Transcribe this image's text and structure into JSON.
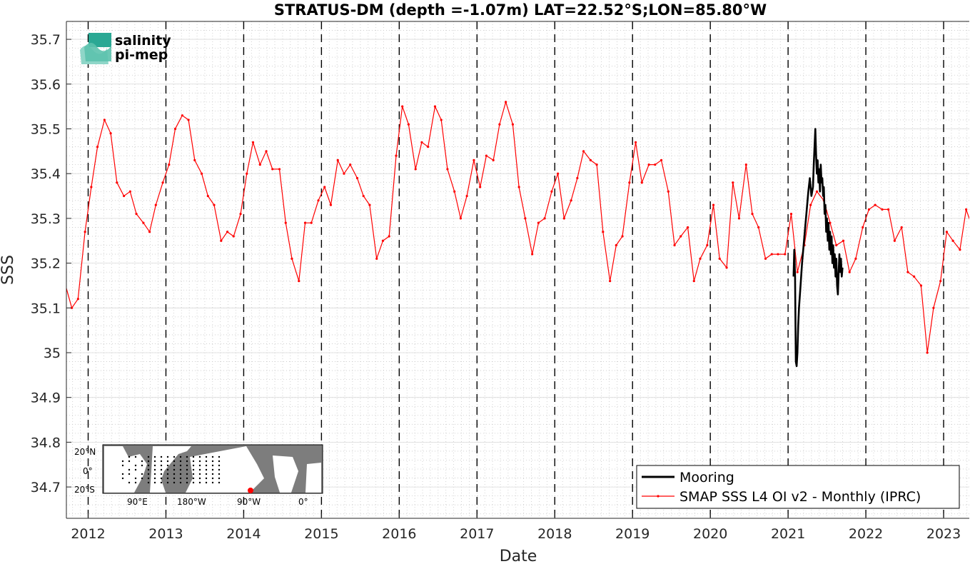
{
  "chart_data": {
    "type": "line",
    "title": "STRATUS-DM (depth =-1.07m) LAT=22.52°S;LON=85.80°W",
    "xlabel": "Date",
    "ylabel": "SSS",
    "xlim": [
      2011.72,
      2023.33
    ],
    "ylim": [
      34.63,
      35.74
    ],
    "x_ticks": [
      2012,
      2013,
      2014,
      2015,
      2016,
      2017,
      2018,
      2019,
      2020,
      2021,
      2022,
      2023
    ],
    "x_tick_labels": [
      "2012",
      "2013",
      "2014",
      "2015",
      "2016",
      "2017",
      "2018",
      "2019",
      "2020",
      "2021",
      "2022",
      "2023"
    ],
    "y_ticks": [
      34.7,
      34.8,
      34.9,
      35.0,
      35.1,
      35.2,
      35.3,
      35.4,
      35.5,
      35.6,
      35.7
    ],
    "y_tick_labels": [
      "34.7",
      "34.8",
      "34.9",
      "35",
      "35.1",
      "35.2",
      "35.3",
      "35.4",
      "35.5",
      "35.6",
      "35.7"
    ],
    "grid": "dotted minor grid on; dashed vertical lines at each year",
    "legend_position": "bottom-right",
    "series": [
      {
        "name": "Mooring",
        "color": "#000000",
        "x": [
          2021.07,
          2021.08,
          2021.09,
          2021.1,
          2021.11,
          2021.12,
          2021.13,
          2021.14,
          2021.16,
          2021.18,
          2021.2,
          2021.22,
          2021.24,
          2021.26,
          2021.28,
          2021.3,
          2021.32,
          2021.33,
          2021.34,
          2021.35,
          2021.36,
          2021.37,
          2021.38,
          2021.39,
          2021.4,
          2021.41,
          2021.42,
          2021.43,
          2021.44,
          2021.45,
          2021.46,
          2021.47,
          2021.48,
          2021.49,
          2021.5,
          2021.51,
          2021.52,
          2021.53,
          2021.54,
          2021.55,
          2021.56,
          2021.57,
          2021.58,
          2021.59,
          2021.6,
          2021.61,
          2021.62,
          2021.63,
          2021.64,
          2021.65,
          2021.66,
          2021.67,
          2021.68,
          2021.69,
          2021.7
        ],
        "y": [
          35.17,
          35.23,
          35.17,
          34.98,
          34.97,
          35.0,
          35.06,
          35.1,
          35.15,
          35.2,
          35.24,
          35.28,
          35.32,
          35.36,
          35.39,
          35.35,
          35.37,
          35.42,
          35.46,
          35.5,
          35.44,
          35.4,
          35.43,
          35.38,
          35.41,
          35.36,
          35.42,
          35.38,
          35.39,
          35.35,
          35.37,
          35.31,
          35.33,
          35.27,
          35.3,
          35.25,
          35.29,
          35.23,
          35.27,
          35.22,
          35.26,
          35.2,
          35.24,
          35.19,
          35.22,
          35.17,
          35.21,
          35.15,
          35.13,
          35.18,
          35.22,
          35.18,
          35.21,
          35.17,
          35.19
        ]
      },
      {
        "name": "SMAP SSS L4 OI v2 - Monthly (IPRC)",
        "color": "#ff0000",
        "x": [
          2011.71,
          2011.79,
          2011.87,
          2011.96,
          2012.04,
          2012.12,
          2012.21,
          2012.29,
          2012.37,
          2012.46,
          2012.54,
          2012.62,
          2012.71,
          2012.79,
          2012.87,
          2012.96,
          2013.04,
          2013.12,
          2013.21,
          2013.29,
          2013.37,
          2013.46,
          2013.54,
          2013.62,
          2013.71,
          2013.79,
          2013.87,
          2013.96,
          2014.04,
          2014.12,
          2014.21,
          2014.29,
          2014.37,
          2014.46,
          2014.54,
          2014.62,
          2014.71,
          2014.79,
          2014.87,
          2014.96,
          2015.04,
          2015.12,
          2015.21,
          2015.29,
          2015.37,
          2015.46,
          2015.54,
          2015.62,
          2015.71,
          2015.79,
          2015.87,
          2015.96,
          2016.04,
          2016.12,
          2016.21,
          2016.29,
          2016.37,
          2016.46,
          2016.54,
          2016.62,
          2016.71,
          2016.79,
          2016.87,
          2016.96,
          2017.04,
          2017.12,
          2017.21,
          2017.29,
          2017.37,
          2017.46,
          2017.54,
          2017.62,
          2017.71,
          2017.79,
          2017.87,
          2017.96,
          2018.04,
          2018.12,
          2018.21,
          2018.29,
          2018.37,
          2018.46,
          2018.54,
          2018.62,
          2018.71,
          2018.79,
          2018.87,
          2018.96,
          2019.04,
          2019.12,
          2019.21,
          2019.29,
          2019.37,
          2019.46,
          2019.54,
          2019.62,
          2019.71,
          2019.79,
          2019.87,
          2019.96,
          2020.04,
          2020.12,
          2020.21,
          2020.29,
          2020.37,
          2020.46,
          2020.54,
          2020.62,
          2020.71,
          2020.79,
          2020.87,
          2020.96,
          2021.04,
          2021.12,
          2021.21,
          2021.29,
          2021.37,
          2021.46,
          2021.54,
          2021.62,
          2021.71,
          2021.79,
          2021.87,
          2021.96,
          2022.04,
          2022.12,
          2022.21,
          2022.29,
          2022.37,
          2022.46,
          2022.54,
          2022.62,
          2022.71,
          2022.79,
          2022.87,
          2022.96,
          2023.04,
          2023.12,
          2023.21,
          2023.29,
          2023.37
        ],
        "y": [
          35.15,
          35.1,
          35.12,
          35.27,
          35.37,
          35.46,
          35.52,
          35.49,
          35.38,
          35.35,
          35.36,
          35.31,
          35.29,
          35.27,
          35.33,
          35.38,
          35.42,
          35.5,
          35.53,
          35.52,
          35.43,
          35.4,
          35.35,
          35.33,
          35.25,
          35.27,
          35.26,
          35.31,
          35.4,
          35.47,
          35.42,
          35.45,
          35.41,
          35.41,
          35.29,
          35.21,
          35.16,
          35.29,
          35.29,
          35.34,
          35.37,
          35.33,
          35.43,
          35.4,
          35.42,
          35.39,
          35.35,
          35.33,
          35.21,
          35.25,
          35.26,
          35.44,
          35.55,
          35.51,
          35.41,
          35.47,
          35.46,
          35.55,
          35.52,
          35.41,
          35.36,
          35.3,
          35.35,
          35.43,
          35.37,
          35.44,
          35.43,
          35.51,
          35.56,
          35.51,
          35.37,
          35.3,
          35.22,
          35.29,
          35.3,
          35.36,
          35.4,
          35.3,
          35.34,
          35.39,
          35.45,
          35.43,
          35.42,
          35.27,
          35.16,
          35.24,
          35.26,
          35.38,
          35.47,
          35.38,
          35.42,
          35.42,
          35.43,
          35.36,
          35.24,
          35.26,
          35.28,
          35.16,
          35.21,
          35.24,
          35.33,
          35.21,
          35.19,
          35.38,
          35.3,
          35.42,
          35.31,
          35.28,
          35.21,
          35.22,
          35.22,
          35.22,
          35.31,
          35.18,
          35.24,
          35.33,
          35.36,
          35.34,
          35.29,
          35.24,
          35.25,
          35.18,
          35.21,
          35.28,
          35.32,
          35.33,
          35.32,
          35.32,
          35.25,
          35.28,
          35.18,
          35.17,
          35.15,
          35.0,
          35.1,
          35.16,
          35.27,
          35.25,
          35.23,
          35.32,
          35.28
        ]
      }
    ]
  },
  "logo": {
    "line1": "salinity",
    "line2": "pi-mep",
    "color1": "#1aa38e",
    "color2": "#0f5a5a"
  },
  "inset_map": {
    "lat_labels": [
      "20°N",
      "0°",
      "20°S"
    ],
    "lon_labels": [
      "90°E",
      "180°W",
      "90°W",
      "0°"
    ],
    "marker_color": "#ff0000"
  }
}
